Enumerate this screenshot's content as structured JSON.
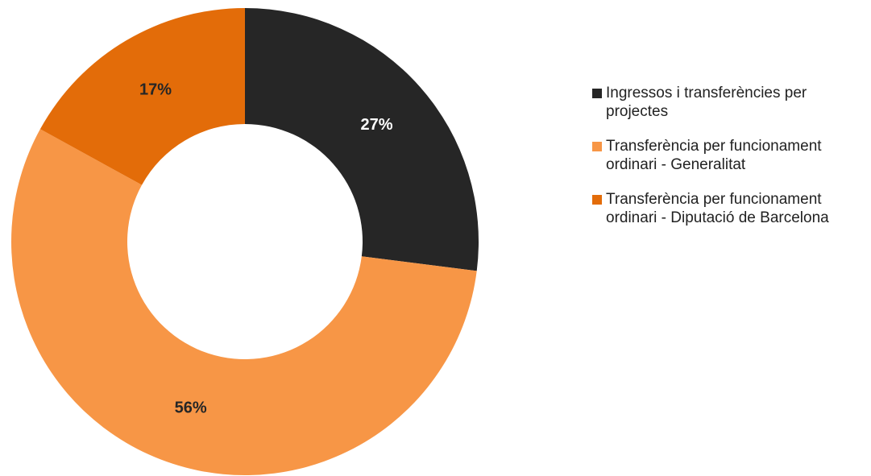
{
  "chart_data": {
    "type": "donut",
    "categories": [
      "Ingressos i transferències per projectes",
      "Transferència per funcionament ordinari - Generalitat",
      "Transferència per funcionament ordinari - Diputació de Barcelona"
    ],
    "values": [
      27,
      56,
      17
    ],
    "value_labels": [
      "27%",
      "56%",
      "17%"
    ],
    "colors": [
      "#262626",
      "#f79646",
      "#e36c09"
    ],
    "legend": "right"
  }
}
